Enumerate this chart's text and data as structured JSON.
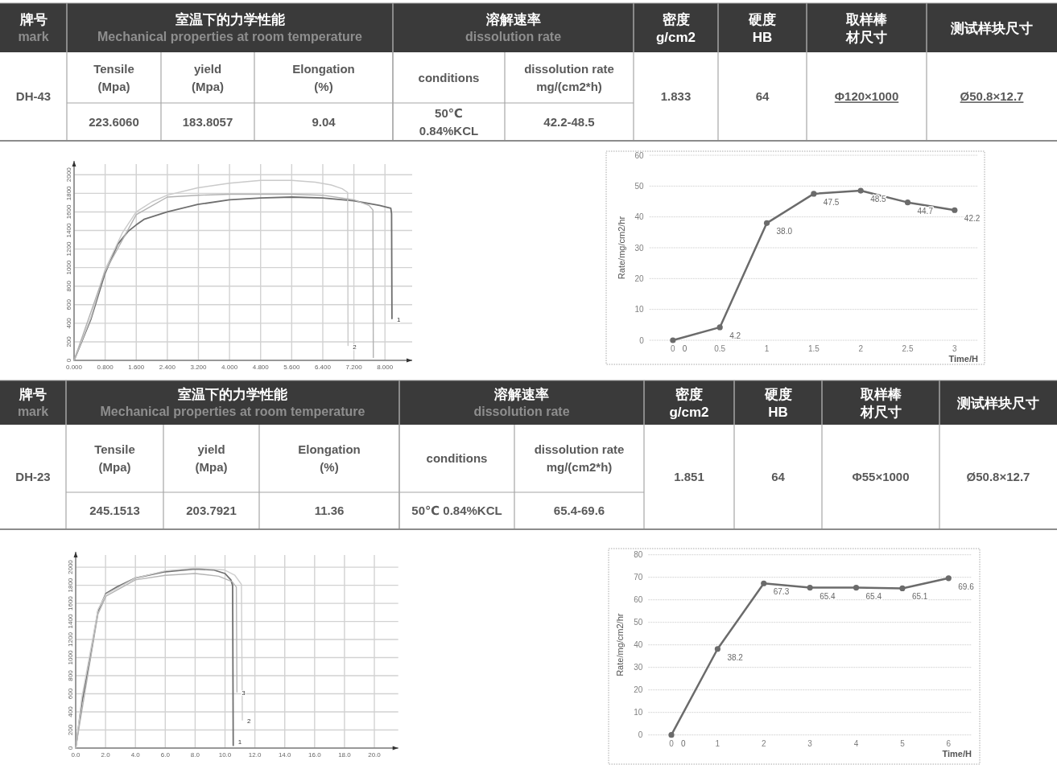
{
  "chart_data": [
    {
      "type": "other",
      "annotations": [
        "牌号",
        "mark",
        "室温下的力学性能",
        "Mechanical properties at room temperature",
        "溶解速率",
        "dissolution rate",
        "密度",
        "g/cm2",
        "硬度",
        "HB",
        "取样棒",
        "材尺寸",
        "测试样块尺寸",
        "DH-43",
        "Tensile",
        "(Mpa)",
        "yield",
        "(Mpa)",
        "Elongation",
        "(%)",
        "conditions",
        "dissolution rate",
        "mg/(cm2*h)",
        "1.833",
        "64",
        "Φ120×1000",
        "Ø50.8×12.7",
        "223.6060",
        "183.8057",
        "9.04",
        "50℃",
        "0.84%KCL",
        "42.2-48.5"
      ]
    },
    {
      "type": "line",
      "xlim": [
        0,
        8.7
      ],
      "ylim": [
        0,
        2150
      ],
      "xticks": [
        {
          "value": 0,
          "label": "0.000"
        },
        {
          "value": 0.8,
          "label": "0.800"
        },
        {
          "value": 1.6,
          "label": "1.600"
        },
        {
          "value": 2.4,
          "label": "2.400"
        },
        {
          "value": 3.2,
          "label": "3.200"
        },
        {
          "value": 4,
          "label": "4.000"
        },
        {
          "value": 4.8,
          "label": "4.800"
        },
        {
          "value": 5.6,
          "label": "5.600"
        },
        {
          "value": 6.4,
          "label": "6.400"
        },
        {
          "value": 7.2,
          "label": "7.200"
        },
        {
          "value": 8,
          "label": "8.000"
        }
      ],
      "yticks": [
        0,
        200,
        400,
        600,
        800,
        1000,
        1200,
        1400,
        1600,
        1800,
        2000
      ],
      "grid": true,
      "series": [
        {
          "name": "1",
          "color": "#6f6f6f",
          "x": [
            0,
            0.43,
            0.79,
            1.12,
            1.39,
            1.6,
            1.8,
            2.4,
            3.18,
            4.0,
            4.8,
            5.6,
            6.4,
            7.2,
            7.86,
            8.15,
            8.17,
            8.18
          ],
          "values": [
            0,
            440,
            930,
            1250,
            1390,
            1460,
            1520,
            1600,
            1680,
            1730,
            1750,
            1760,
            1750,
            1720,
            1670,
            1640,
            1580,
            450
          ]
        },
        {
          "name": "2",
          "color": "#cacaca",
          "x": [
            0,
            0.43,
            0.79,
            1.25,
            1.6,
            2.01,
            2.4,
            3.18,
            4.0,
            4.8,
            5.6,
            6.21,
            6.62,
            6.9,
            7.04,
            7.05
          ],
          "values": [
            0,
            460,
            970,
            1380,
            1600,
            1710,
            1780,
            1860,
            1910,
            1940,
            1940,
            1920,
            1890,
            1850,
            1810,
            160
          ]
        },
        {
          "color": "#b2b2b2",
          "x": [
            0,
            0.79,
            1.6,
            2.4,
            3.18,
            4.0,
            4.8,
            5.6,
            6.4,
            7.2,
            7.59,
            7.69,
            7.7
          ],
          "values": [
            0,
            950,
            1570,
            1760,
            1780,
            1790,
            1790,
            1790,
            1780,
            1730,
            1670,
            1620,
            30
          ]
        }
      ]
    },
    {
      "type": "line",
      "categories": [
        "0",
        "0.5",
        "1",
        "1.5",
        "2",
        "2.5",
        "3"
      ],
      "values": [
        0,
        4.2,
        38.0,
        47.5,
        48.5,
        44.7,
        42.2
      ],
      "value_labels": [
        "0",
        "4.2",
        "38.0",
        "47.5",
        "48.5",
        "44.7",
        "42.2"
      ],
      "color": "#6b6b6b",
      "ylim": [
        0,
        60
      ],
      "yticks": [
        0,
        10,
        20,
        30,
        40,
        50,
        60
      ],
      "grid": "y",
      "marker": "circle",
      "xlabel": "Time/H",
      "ylabel": "Rate/mg/cm2/hr"
    },
    {
      "type": "other",
      "annotations": [
        "牌号",
        "mark",
        "室温下的力学性能",
        "Mechanical properties at room temperature",
        "溶解速率",
        "dissolution rate",
        "密度",
        "g/cm2",
        "硬度",
        "HB",
        "取样棒",
        "材尺寸",
        "测试样块尺寸",
        "DH-23",
        "Tensile",
        "(Mpa)",
        "yield",
        "(Mpa)",
        "Elongation",
        "(%)",
        "conditions",
        "dissolution rate",
        "mg/(cm2*h)",
        "1.851",
        "64",
        "Φ55×1000",
        "Ø50.8×12.7",
        "245.1513",
        "203.7921",
        "11.36",
        "50℃ 0.84%KCL",
        "65.4-69.6"
      ]
    },
    {
      "type": "line",
      "xlim": [
        0,
        21.6
      ],
      "ylim": [
        0,
        2170
      ],
      "xticks": [
        {
          "value": 0,
          "label": "0.0"
        },
        {
          "value": 2,
          "label": "2.0"
        },
        {
          "value": 4,
          "label": "4.0"
        },
        {
          "value": 6,
          "label": "6.0"
        },
        {
          "value": 8,
          "label": "8.0"
        },
        {
          "value": 10,
          "label": "10.0"
        },
        {
          "value": 12,
          "label": "12.0"
        },
        {
          "value": 14,
          "label": "14.0"
        },
        {
          "value": 16,
          "label": "16.0"
        },
        {
          "value": 18,
          "label": "18.0"
        },
        {
          "value": 20,
          "label": "20.0"
        }
      ],
      "yticks": [
        0,
        200,
        400,
        600,
        800,
        1000,
        1200,
        1400,
        1600,
        1800,
        2000
      ],
      "grid": true,
      "series": [
        {
          "name": "1",
          "color": "#6f6f6f",
          "x": [
            0,
            0.41,
            0.95,
            1.49,
            2.03,
            2.75,
            4.0,
            6.0,
            8.0,
            9.22,
            10.0,
            10.39,
            10.51,
            10.55
          ],
          "values": [
            0,
            500,
            980,
            1510,
            1710,
            1780,
            1880,
            1950,
            1980,
            1970,
            1930,
            1860,
            1800,
            30
          ]
        },
        {
          "name": "2",
          "color": "#cfcfcf",
          "x": [
            0,
            0.41,
            0.95,
            1.49,
            2.03,
            4.0,
            6.0,
            8.0,
            9.94,
            10.66,
            11.1,
            11.16
          ],
          "values": [
            0,
            560,
            1040,
            1530,
            1700,
            1880,
            1960,
            1990,
            1970,
            1910,
            1810,
            310
          ]
        },
        {
          "name": "3",
          "color": "#b5b5b5",
          "x": [
            0,
            1.49,
            2.03,
            4.0,
            6.0,
            8.0,
            9.58,
            10.48,
            10.76,
            10.8
          ],
          "values": [
            0,
            1480,
            1680,
            1860,
            1910,
            1930,
            1900,
            1840,
            1780,
            620
          ]
        }
      ]
    },
    {
      "type": "line",
      "categories": [
        "0",
        "1",
        "2",
        "3",
        "4",
        "5",
        "6"
      ],
      "values": [
        0,
        38.2,
        67.3,
        65.4,
        65.4,
        65.1,
        69.6
      ],
      "value_labels": [
        "0",
        "38.2",
        "67.3",
        "65.4",
        "65.4",
        "65.1",
        "69.6"
      ],
      "color": "#6b6b6b",
      "ylim": [
        0,
        80
      ],
      "yticks": [
        0,
        10,
        20,
        30,
        40,
        50,
        60,
        70,
        80
      ],
      "grid": "y",
      "marker": "circle",
      "xlabel": "Time/H",
      "ylabel": "Rate/mg/cm2/hr"
    }
  ]
}
